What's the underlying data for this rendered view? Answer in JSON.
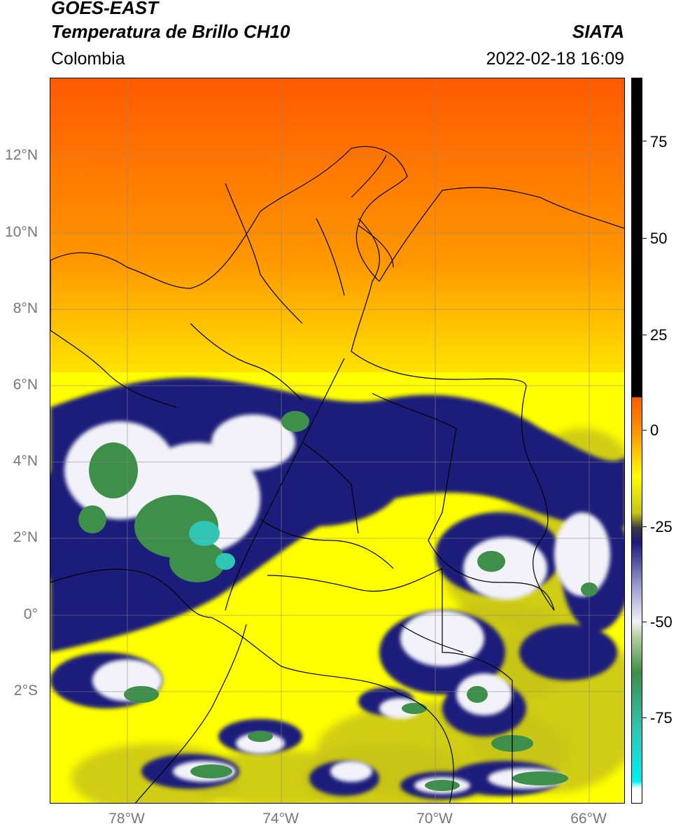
{
  "header": {
    "satellite": "GOES-EAST",
    "product": "Temperatura de Brillo CH10",
    "organization": "SIATA",
    "region": "Colombia",
    "datetime": "2022-02-18 16:09"
  },
  "map": {
    "lon_ticks": [
      "78°W",
      "74°W",
      "70°W",
      "66°W"
    ],
    "lat_ticks": [
      "12°N",
      "10°N",
      "8°N",
      "6°N",
      "4°N",
      "2°N",
      "0°",
      "2°S"
    ],
    "colors": {
      "warm_top": "#ff5a00",
      "warm_mid": "#ff9800",
      "yellow": "#ffff00",
      "olive": "#c8c414",
      "navy": "#1a1a7a",
      "white_cloud": "#f2f2f8",
      "green_cloud": "#3d8f4a",
      "cyan_cloud": "#2fc6b4",
      "border_line": "#000000",
      "grid": "#888888"
    }
  },
  "colorbar": {
    "labels": [
      "75",
      "50",
      "25",
      "0",
      "-25",
      "-50",
      "-75"
    ],
    "range": [
      -95,
      90
    ]
  }
}
